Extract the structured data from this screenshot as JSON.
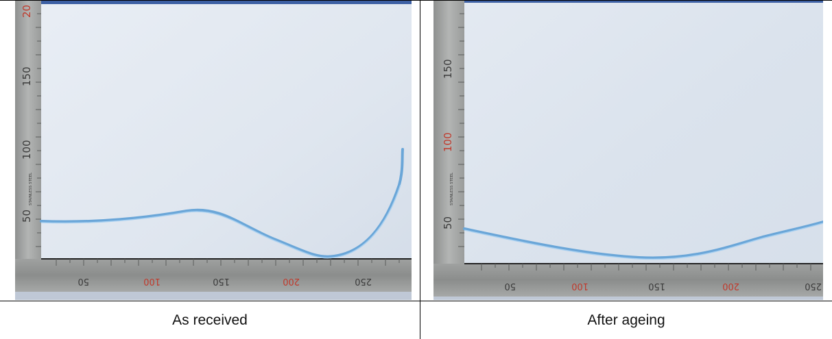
{
  "captions": {
    "left": "As received",
    "right": "After ageing"
  },
  "left_photo": {
    "vertical_ruler_labels": [
      "50",
      "100",
      "150",
      "20"
    ],
    "ruler_brand_text": "STAINLESS STEEL",
    "horizontal_ruler_labels": [
      "50",
      "100",
      "150",
      "200",
      "250"
    ]
  },
  "right_photo": {
    "vertical_ruler_labels": [
      "50",
      "100",
      "150"
    ],
    "ruler_brand_text": "STAINLESS STEEL",
    "horizontal_ruler_labels": [
      "50",
      "100",
      "150",
      "200",
      "250"
    ]
  },
  "colors": {
    "board": "#dde5ef",
    "ruler": "#a7a9a8",
    "ruler_label_red": "#c0392b",
    "fibre": "#6aa6d8"
  }
}
